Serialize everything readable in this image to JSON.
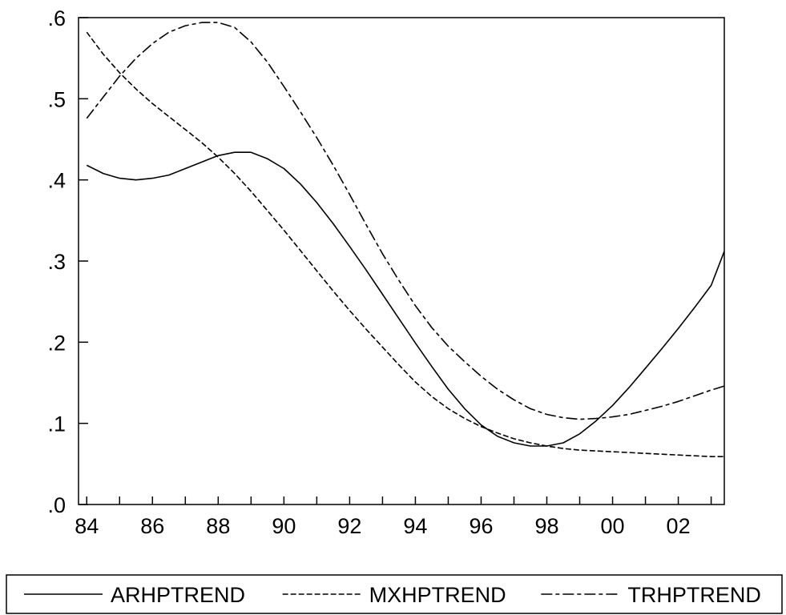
{
  "chart_data": {
    "type": "line",
    "title": "",
    "xlabel": "",
    "ylabel": "",
    "xlim": [
      1983.75,
      2003.4
    ],
    "ylim": [
      0,
      0.6
    ],
    "grid": false,
    "legend_position": "bottom",
    "x_ticks": [
      {
        "value": 1984,
        "label": "84"
      },
      {
        "value": 1986,
        "label": "86"
      },
      {
        "value": 1988,
        "label": "88"
      },
      {
        "value": 1990,
        "label": "90"
      },
      {
        "value": 1992,
        "label": "92"
      },
      {
        "value": 1994,
        "label": "94"
      },
      {
        "value": 1996,
        "label": "96"
      },
      {
        "value": 1998,
        "label": "98"
      },
      {
        "value": 2000,
        "label": "00"
      },
      {
        "value": 2002,
        "label": "02"
      }
    ],
    "y_ticks": [
      {
        "value": 0.0,
        "label": ".0"
      },
      {
        "value": 0.1,
        "label": ".1"
      },
      {
        "value": 0.2,
        "label": ".2"
      },
      {
        "value": 0.3,
        "label": ".3"
      },
      {
        "value": 0.4,
        "label": ".4"
      },
      {
        "value": 0.5,
        "label": ".5"
      },
      {
        "value": 0.6,
        "label": ".6"
      }
    ],
    "series": [
      {
        "name": "ARHPTREND",
        "line_style": "solid",
        "color": "#000000",
        "x": [
          1984.0,
          1984.5,
          1985.0,
          1985.5,
          1986.0,
          1986.5,
          1987.0,
          1987.5,
          1988.0,
          1988.5,
          1989.0,
          1989.5,
          1990.0,
          1990.5,
          1991.0,
          1991.5,
          1992.0,
          1992.5,
          1993.0,
          1993.5,
          1994.0,
          1994.5,
          1995.0,
          1995.5,
          1996.0,
          1996.5,
          1997.0,
          1997.5,
          1998.0,
          1998.5,
          1999.0,
          1999.5,
          2000.0,
          2000.5,
          2001.0,
          2001.5,
          2002.0,
          2002.5,
          2003.0,
          2003.4
        ],
        "y": [
          0.418,
          0.408,
          0.402,
          0.4,
          0.402,
          0.406,
          0.414,
          0.422,
          0.43,
          0.434,
          0.434,
          0.426,
          0.414,
          0.395,
          0.372,
          0.346,
          0.318,
          0.289,
          0.259,
          0.229,
          0.199,
          0.17,
          0.142,
          0.118,
          0.098,
          0.084,
          0.076,
          0.072,
          0.072,
          0.076,
          0.087,
          0.103,
          0.122,
          0.144,
          0.168,
          0.192,
          0.217,
          0.243,
          0.27,
          0.312
        ]
      },
      {
        "name": "MXHPTREND",
        "line_style": "dashed",
        "color": "#000000",
        "x": [
          1984.0,
          1984.5,
          1985.0,
          1985.5,
          1986.0,
          1986.5,
          1987.0,
          1987.5,
          1988.0,
          1988.5,
          1989.0,
          1989.5,
          1990.0,
          1990.5,
          1991.0,
          1991.5,
          1992.0,
          1992.5,
          1993.0,
          1993.5,
          1994.0,
          1994.5,
          1995.0,
          1995.5,
          1996.0,
          1996.5,
          1997.0,
          1997.5,
          1998.0,
          1998.5,
          1999.0,
          1999.5,
          2000.0,
          2000.5,
          2001.0,
          2001.5,
          2002.0,
          2002.5,
          2003.0,
          2003.4
        ],
        "y": [
          0.582,
          0.555,
          0.532,
          0.512,
          0.494,
          0.478,
          0.462,
          0.446,
          0.428,
          0.408,
          0.386,
          0.362,
          0.338,
          0.313,
          0.288,
          0.263,
          0.239,
          0.216,
          0.194,
          0.172,
          0.151,
          0.133,
          0.118,
          0.106,
          0.096,
          0.088,
          0.081,
          0.076,
          0.072,
          0.069,
          0.067,
          0.066,
          0.065,
          0.064,
          0.063,
          0.062,
          0.061,
          0.06,
          0.059,
          0.059
        ]
      },
      {
        "name": "TRHPTREND",
        "line_style": "dash-dot",
        "color": "#000000",
        "x": [
          1984.0,
          1984.5,
          1985.0,
          1985.5,
          1986.0,
          1986.5,
          1987.0,
          1987.5,
          1988.0,
          1988.5,
          1989.0,
          1989.5,
          1990.0,
          1990.5,
          1991.0,
          1991.5,
          1992.0,
          1992.5,
          1993.0,
          1993.5,
          1994.0,
          1994.5,
          1995.0,
          1995.5,
          1996.0,
          1996.5,
          1997.0,
          1997.5,
          1998.0,
          1998.5,
          1999.0,
          1999.5,
          2000.0,
          2000.5,
          2001.0,
          2001.5,
          2002.0,
          2002.5,
          2003.0,
          2003.4
        ],
        "y": [
          0.476,
          0.502,
          0.528,
          0.55,
          0.568,
          0.582,
          0.59,
          0.594,
          0.594,
          0.588,
          0.57,
          0.545,
          0.515,
          0.484,
          0.452,
          0.418,
          0.382,
          0.345,
          0.309,
          0.276,
          0.245,
          0.218,
          0.195,
          0.176,
          0.158,
          0.142,
          0.129,
          0.118,
          0.111,
          0.107,
          0.105,
          0.106,
          0.108,
          0.111,
          0.116,
          0.121,
          0.127,
          0.134,
          0.141,
          0.146
        ]
      }
    ]
  }
}
